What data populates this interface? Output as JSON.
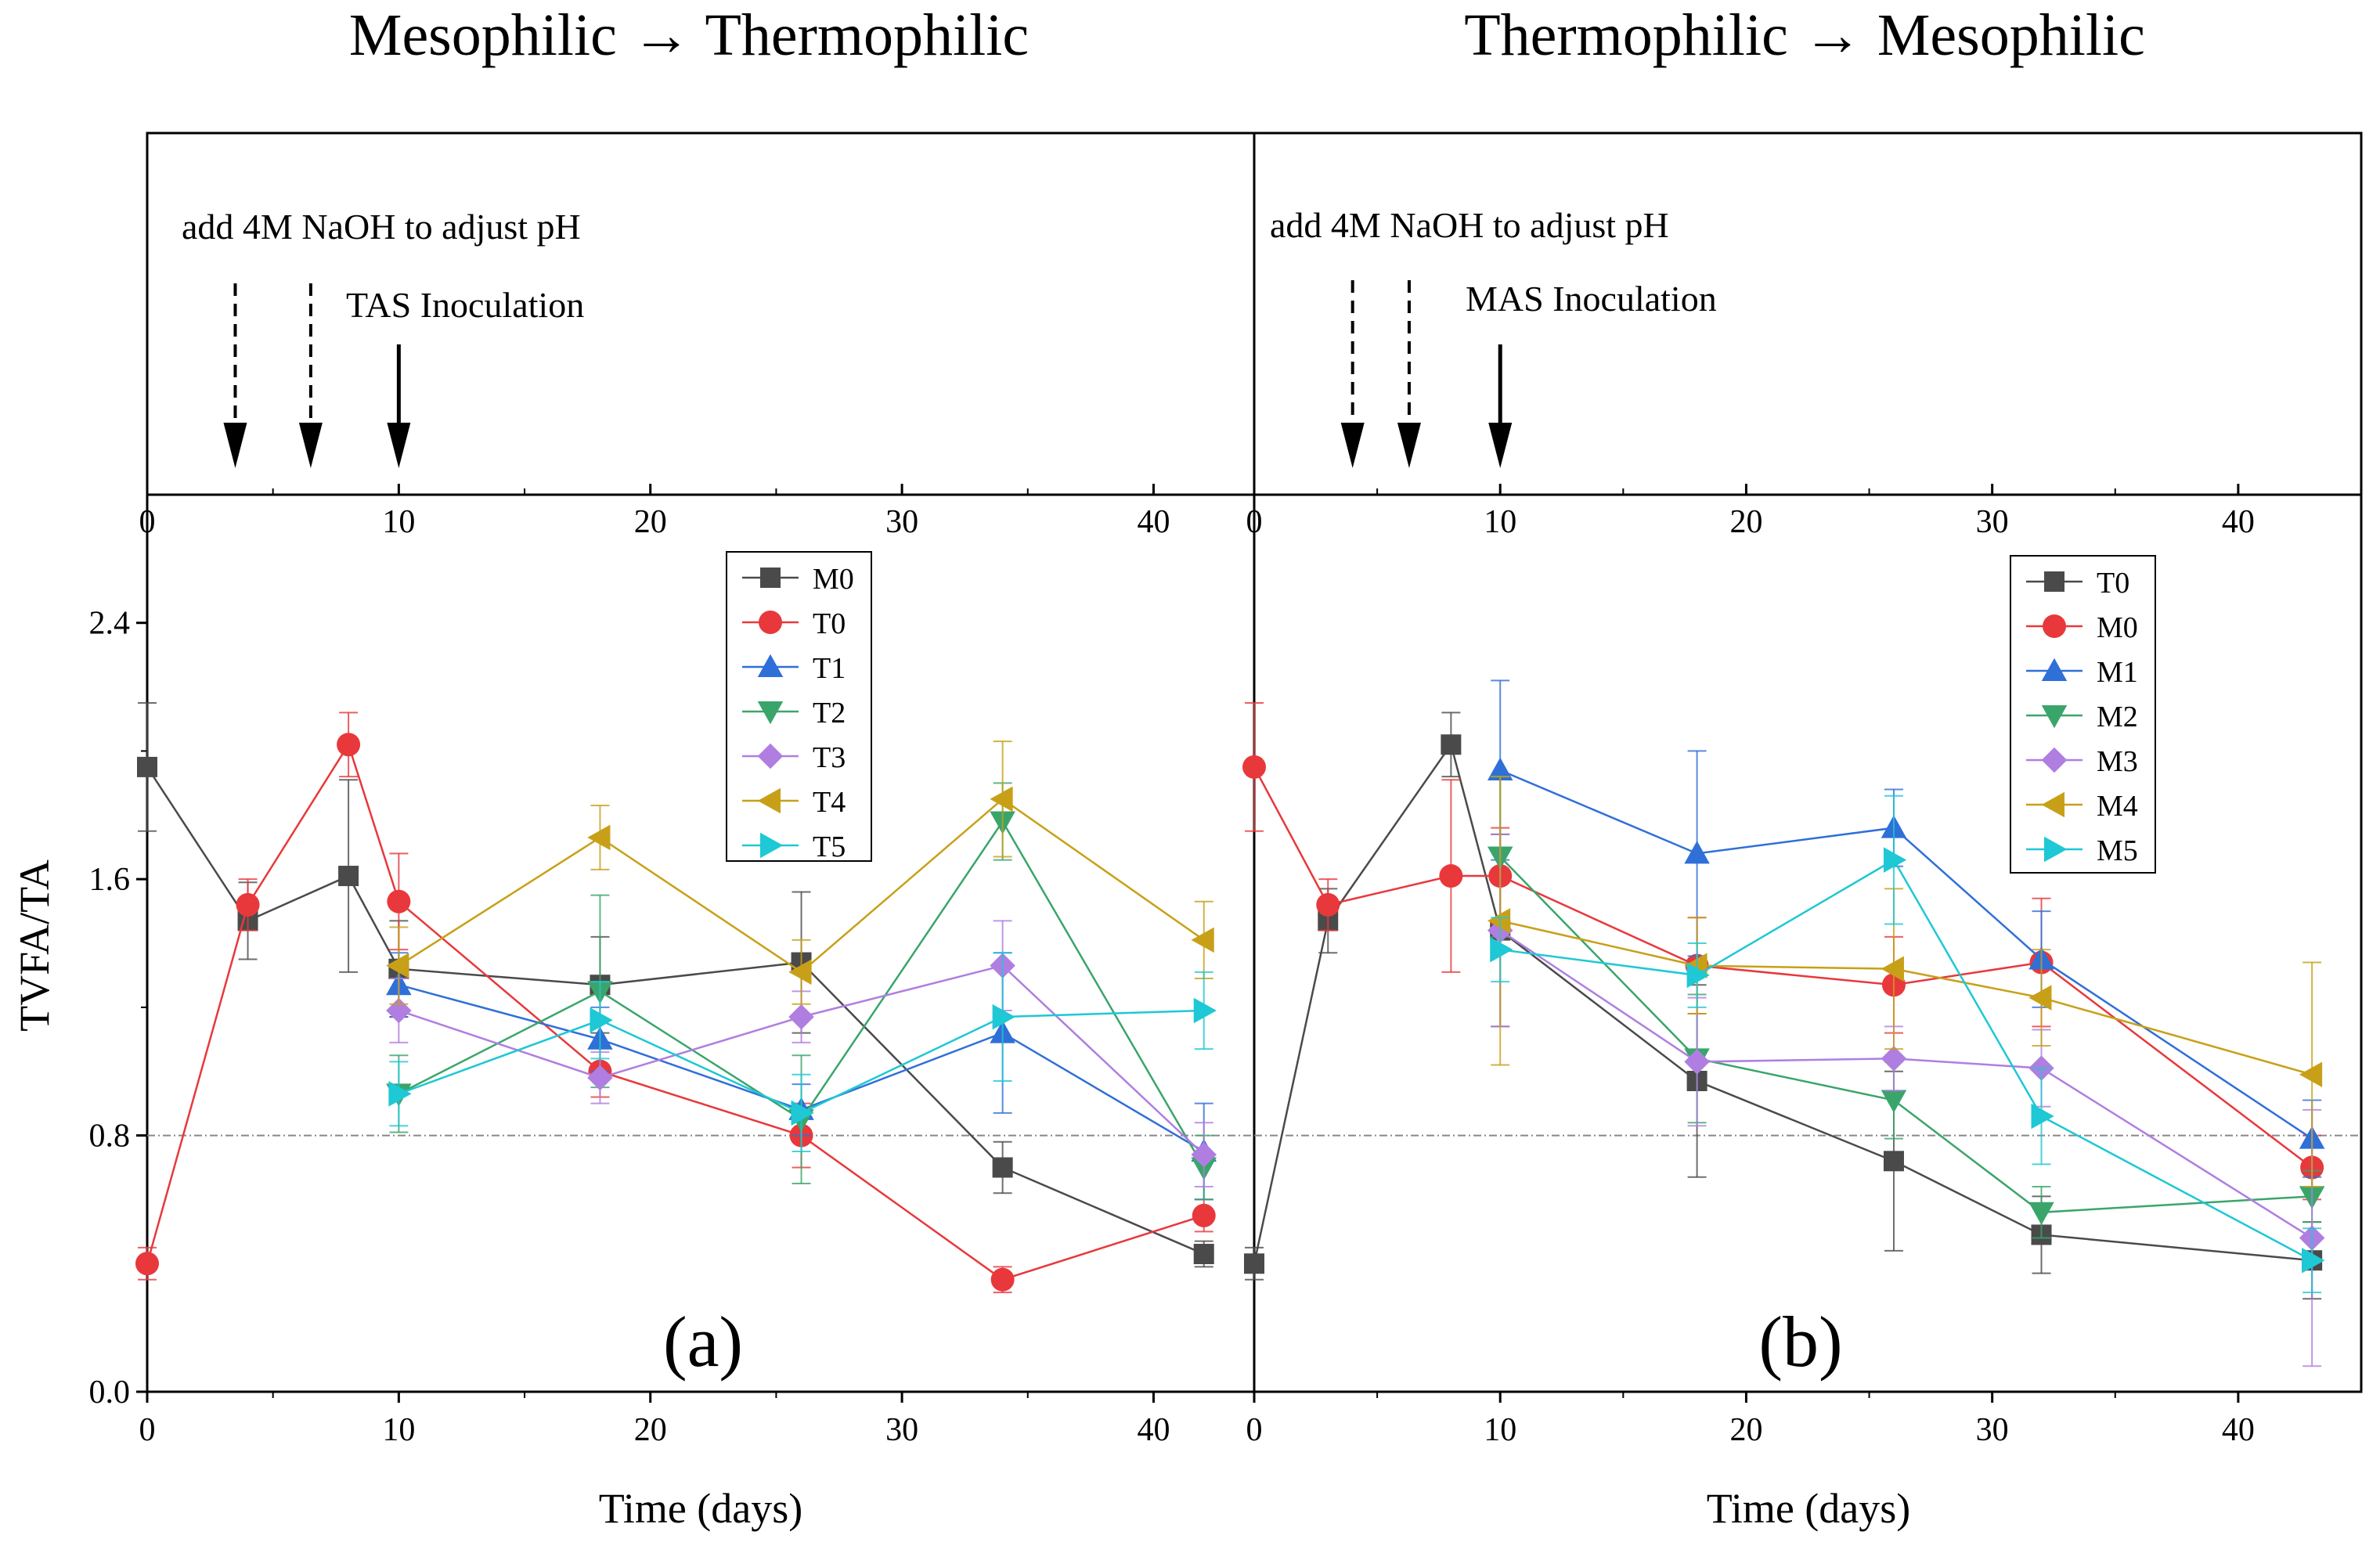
{
  "titles": {
    "left": "Mesophilic → Thermophilic",
    "right": "Thermophilic → Mesophilic"
  },
  "annotations": {
    "left_ph": "add 4M NaOH to adjust pH",
    "left_inoc": "TAS Inoculation",
    "right_ph": "add 4M NaOH to adjust pH",
    "right_inoc": "MAS Inoculation"
  },
  "labels": {
    "ylabel": "TVFA/TA",
    "xlabel_a": "Time (days)",
    "xlabel_b": "Time (days)",
    "panel_a": "(a)",
    "panel_b": "(b)"
  },
  "colors": {
    "black": "#4a4a4a",
    "red": "#e8383b",
    "blue": "#2f6fd8",
    "green": "#3aa56b",
    "purple": "#b07ee0",
    "gold": "#c8a018",
    "cyan": "#1ec8d4",
    "refline": "#888888"
  },
  "chart_data": [
    {
      "type": "line",
      "panel": "a",
      "xlim": [
        0,
        44
      ],
      "ylim": [
        0,
        2.8
      ],
      "xticks": [
        0,
        10,
        20,
        30,
        40
      ],
      "yticks": [
        0.0,
        0.8,
        1.6,
        2.4
      ],
      "ytick_labels": [
        "0.0",
        "0.8",
        "1.6",
        "2.4"
      ],
      "reference_line": 0.8,
      "arrows": {
        "dashed": [
          3.5,
          6.5
        ],
        "solid": [
          10
        ]
      },
      "series": [
        {
          "name": "M0",
          "marker": "square",
          "color": "black",
          "x": [
            0,
            4,
            8,
            10,
            18,
            26,
            34,
            42
          ],
          "y": [
            1.95,
            1.47,
            1.61,
            1.32,
            1.27,
            1.34,
            0.7,
            0.43
          ],
          "err": [
            0.2,
            0.12,
            0.3,
            0.15,
            0.15,
            0.22,
            0.08,
            0.04
          ]
        },
        {
          "name": "T0",
          "marker": "circle",
          "color": "red",
          "x": [
            0,
            4,
            8,
            10,
            18,
            26,
            34,
            42
          ],
          "y": [
            0.4,
            1.52,
            2.02,
            1.53,
            1.0,
            0.8,
            0.35,
            0.55
          ],
          "err": [
            0.05,
            0.08,
            0.1,
            0.15,
            0.08,
            0.1,
            0.04,
            0.05
          ]
        },
        {
          "name": "T1",
          "marker": "triangle-up",
          "color": "blue",
          "x": [
            10,
            18,
            26,
            34,
            42
          ],
          "y": [
            1.27,
            1.1,
            0.88,
            1.12,
            0.75
          ],
          "err": [
            0.1,
            0.1,
            0.08,
            0.25,
            0.15
          ]
        },
        {
          "name": "T2",
          "marker": "triangle-down",
          "color": "green",
          "x": [
            10,
            18,
            26,
            34,
            42
          ],
          "y": [
            0.93,
            1.25,
            0.85,
            1.78,
            0.7
          ],
          "err": [
            0.12,
            0.3,
            0.2,
            0.12,
            0.1
          ]
        },
        {
          "name": "T3",
          "marker": "diamond",
          "color": "purple",
          "x": [
            10,
            18,
            26,
            34,
            42
          ],
          "y": [
            1.19,
            0.98,
            1.17,
            1.33,
            0.74
          ],
          "err": [
            0.1,
            0.08,
            0.08,
            0.14,
            0.1
          ]
        },
        {
          "name": "T4",
          "marker": "triangle-left",
          "color": "gold",
          "x": [
            10,
            18,
            26,
            34,
            42
          ],
          "y": [
            1.33,
            1.73,
            1.31,
            1.85,
            1.41
          ],
          "err": [
            0.12,
            0.1,
            0.1,
            0.18,
            0.12
          ]
        },
        {
          "name": "T5",
          "marker": "triangle-right",
          "color": "cyan",
          "x": [
            10,
            18,
            26,
            34,
            42
          ],
          "y": [
            0.93,
            1.16,
            0.87,
            1.17,
            1.19
          ],
          "err": [
            0.1,
            0.12,
            0.12,
            0.2,
            0.12
          ]
        }
      ]
    },
    {
      "type": "line",
      "panel": "b",
      "xlim": [
        0,
        45
      ],
      "ylim": [
        0,
        2.8
      ],
      "xticks": [
        0,
        10,
        20,
        30,
        40
      ],
      "yticks": [
        0.0,
        0.8,
        1.6,
        2.4
      ],
      "reference_line": 0.8,
      "arrows": {
        "dashed": [
          4,
          6.3
        ],
        "solid": [
          10
        ]
      },
      "series": [
        {
          "name": "T0",
          "marker": "square",
          "color": "black",
          "x": [
            0,
            3,
            8,
            10,
            18,
            26,
            32,
            43
          ],
          "y": [
            0.4,
            1.47,
            2.02,
            1.44,
            0.97,
            0.72,
            0.49,
            0.41
          ],
          "err": [
            0.05,
            0.1,
            0.1,
            0.3,
            0.3,
            0.28,
            0.12,
            0.12
          ]
        },
        {
          "name": "M0",
          "marker": "circle",
          "color": "red",
          "x": [
            0,
            3,
            8,
            10,
            18,
            26,
            32,
            43
          ],
          "y": [
            1.95,
            1.52,
            1.61,
            1.61,
            1.33,
            1.27,
            1.34,
            0.7
          ],
          "err": [
            0.2,
            0.08,
            0.3,
            0.15,
            0.15,
            0.15,
            0.2,
            0.1
          ]
        },
        {
          "name": "M1",
          "marker": "triangle-up",
          "color": "blue",
          "x": [
            10,
            18,
            26,
            32,
            43
          ],
          "y": [
            1.94,
            1.68,
            1.76,
            1.35,
            0.79
          ],
          "err": [
            0.28,
            0.32,
            0.12,
            0.15,
            0.12
          ]
        },
        {
          "name": "M2",
          "marker": "triangle-down",
          "color": "green",
          "x": [
            10,
            18,
            26,
            32,
            43
          ],
          "y": [
            1.67,
            1.04,
            0.91,
            0.56,
            0.61
          ],
          "err": [
            0.25,
            0.2,
            0.12,
            0.08,
            0.08
          ]
        },
        {
          "name": "M3",
          "marker": "diamond",
          "color": "purple",
          "x": [
            10,
            18,
            26,
            32,
            43
          ],
          "y": [
            1.44,
            1.03,
            1.04,
            1.01,
            0.48
          ],
          "err": [
            0.3,
            0.2,
            0.1,
            0.12,
            0.4
          ]
        },
        {
          "name": "M4",
          "marker": "triangle-left",
          "color": "gold",
          "x": [
            10,
            18,
            26,
            32,
            43
          ],
          "y": [
            1.47,
            1.33,
            1.32,
            1.23,
            0.99
          ],
          "err": [
            0.45,
            0.15,
            0.25,
            0.15,
            0.35
          ]
        },
        {
          "name": "M5",
          "marker": "triangle-right",
          "color": "cyan",
          "x": [
            10,
            18,
            26,
            32,
            43
          ],
          "y": [
            1.38,
            1.3,
            1.66,
            0.86,
            0.41
          ],
          "err": [
            0.1,
            0.1,
            0.2,
            0.15,
            0.1
          ]
        }
      ]
    }
  ]
}
